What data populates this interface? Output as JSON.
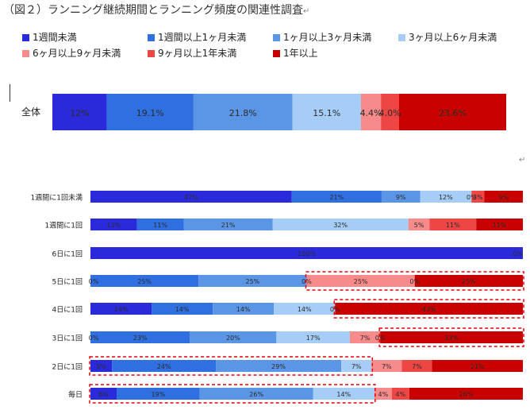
{
  "title": "（図２）ランニング継続期間とランニング頻度の関連性調査",
  "colors": [
    "#2a2adb",
    "#2f6fe0",
    "#5b96e6",
    "#a6cdf5",
    "#f78a8a",
    "#ee4545",
    "#c80000"
  ],
  "chart_data": {
    "type": "bar",
    "stacked": "horizontal-100%",
    "legend_position": "top",
    "series": [
      {
        "name": "1週間未満"
      },
      {
        "name": "1週間以上1ヶ月未満"
      },
      {
        "name": "1ヶ月以上3ヶ月未満"
      },
      {
        "name": "3ヶ月以上6ヶ月未満"
      },
      {
        "name": "6ヶ月以上9ヶ月未満"
      },
      {
        "name": "9ヶ月以上1年未満"
      },
      {
        "name": "1年以上"
      }
    ],
    "overall": {
      "category": "全体",
      "values": [
        12,
        19.1,
        21.8,
        15.1,
        4.4,
        4.0,
        23.6
      ],
      "labels": [
        "12%",
        "19.1%",
        "21.8%",
        "15.1%",
        "4.4%",
        "4.0%",
        "23.6%"
      ]
    },
    "rows": [
      {
        "category": "1週間に1回未満",
        "values": [
          47,
          21,
          9,
          12,
          0,
          3,
          9
        ],
        "labels": [
          "47%",
          "21%",
          "9%",
          "12%",
          "0%",
          "3%",
          "9%"
        ]
      },
      {
        "category": "1週間に1回",
        "values": [
          11,
          11,
          21,
          32,
          5,
          11,
          11
        ],
        "labels": [
          "11%",
          "11%",
          "21%",
          "32%",
          "5%",
          "11%",
          "11%"
        ]
      },
      {
        "category": "6日に1回",
        "values": [
          100,
          0,
          0,
          0,
          0,
          0,
          0
        ],
        "labels": [
          "100%",
          "",
          "",
          "",
          "",
          "",
          "0%"
        ]
      },
      {
        "category": "5日に1回",
        "values": [
          0,
          25,
          25,
          0,
          25,
          0,
          25
        ],
        "labels": [
          "0%",
          "25%",
          "25%",
          "0%",
          "25%",
          "0%",
          "25%"
        ]
      },
      {
        "category": "4日に1回",
        "values": [
          14,
          14,
          14,
          14,
          0,
          0,
          43
        ],
        "labels": [
          "14%",
          "14%",
          "14%",
          "14%",
          "0%",
          "",
          "43%"
        ]
      },
      {
        "category": "3日に1回",
        "values": [
          0,
          23,
          20,
          17,
          7,
          0,
          33
        ],
        "labels": [
          "0%",
          "23%",
          "20%",
          "17%",
          "7%",
          "0%",
          "33%"
        ]
      },
      {
        "category": "2日に1回",
        "values": [
          5,
          24,
          29,
          7,
          7,
          7,
          21
        ],
        "labels": [
          "5%",
          "24%",
          "29%",
          "7%",
          "7%",
          "7%",
          "21%"
        ]
      },
      {
        "category": "毎日",
        "values": [
          6,
          19,
          26,
          14,
          4,
          4,
          26
        ],
        "labels": [
          "6%",
          "19%",
          "26%",
          "14%",
          "4%",
          "4%",
          "26%"
        ]
      }
    ],
    "highlights": [
      {
        "row": 3,
        "from_series": 4,
        "to_series": 6
      },
      {
        "row": 4,
        "from_series": 6,
        "to_series": 6
      },
      {
        "row": 5,
        "from_series": 6,
        "to_series": 6
      },
      {
        "row": 6,
        "from_series": 0,
        "to_series": 3
      },
      {
        "row": 7,
        "from_series": 0,
        "to_series": 3
      }
    ]
  }
}
